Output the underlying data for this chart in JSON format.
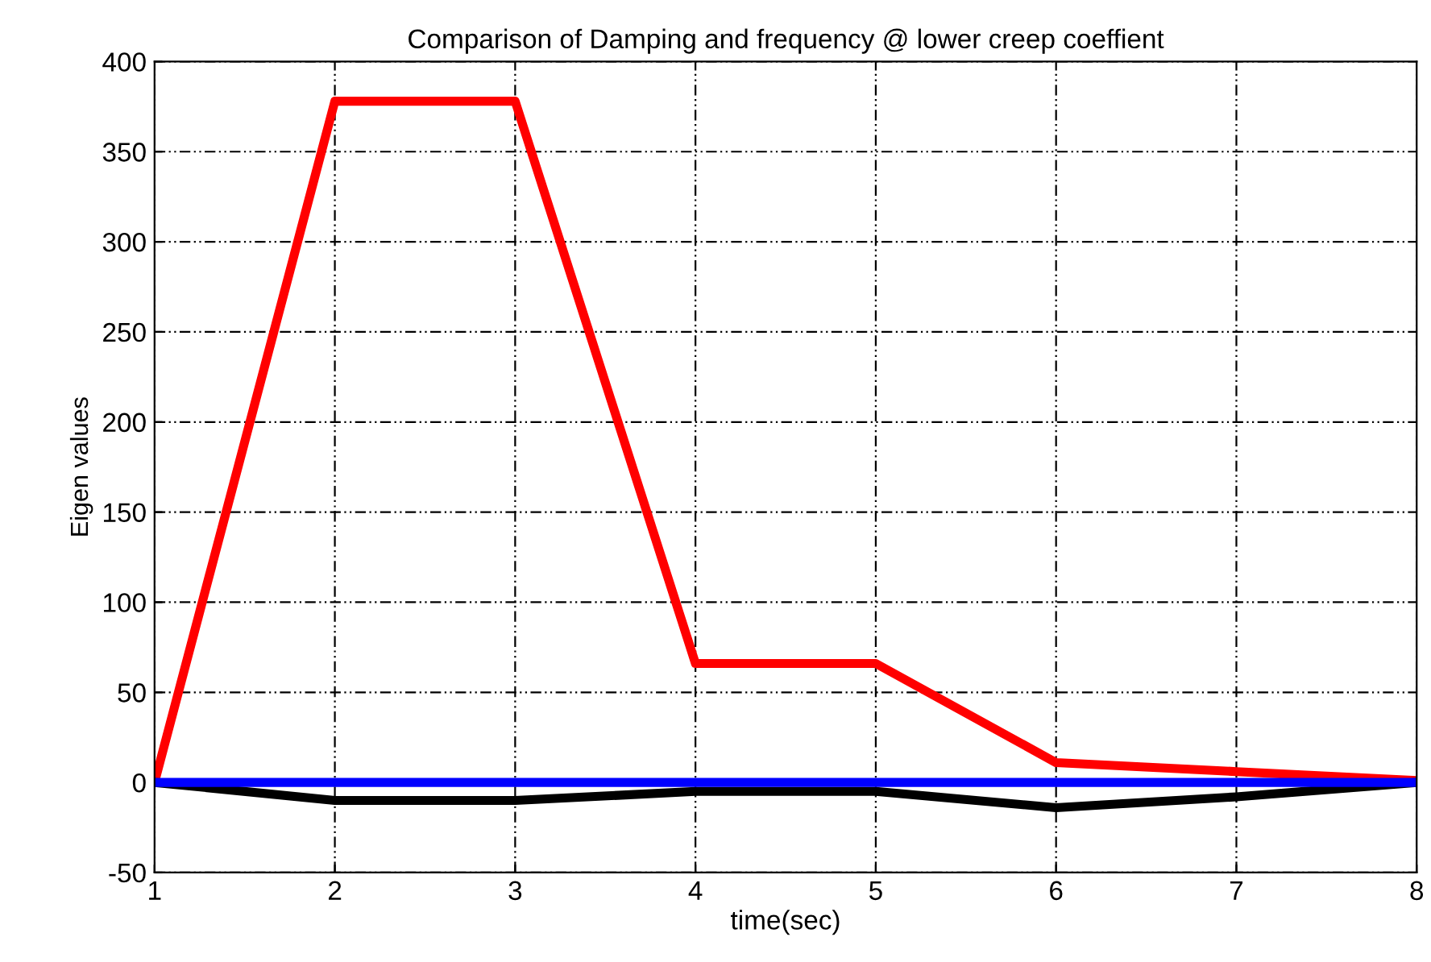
{
  "chart_data": {
    "type": "line",
    "title": "Comparison of Damping and frequency @ lower creep coeffient",
    "xlabel": "time(sec)",
    "ylabel": "Eigen values",
    "x": [
      1,
      2,
      3,
      4,
      5,
      6,
      7,
      8
    ],
    "series": [
      {
        "color": "#ff0000",
        "values": [
          0,
          378,
          378,
          66,
          66,
          11,
          6,
          1
        ]
      },
      {
        "color": "#000000",
        "values": [
          0,
          -10,
          -10,
          -5,
          -5,
          -14,
          -8,
          0
        ]
      },
      {
        "color": "#0000ff",
        "values": [
          0,
          0,
          0,
          0,
          0,
          0,
          0,
          0
        ]
      }
    ],
    "xlim": [
      1,
      8
    ],
    "xticks": [
      1,
      2,
      3,
      4,
      5,
      6,
      7,
      8
    ],
    "ylim": [
      -50,
      400
    ],
    "yticks": [
      -50,
      0,
      50,
      100,
      150,
      200,
      250,
      300,
      350,
      400
    ],
    "grid": true,
    "marker": "none",
    "line_style": "solid"
  }
}
